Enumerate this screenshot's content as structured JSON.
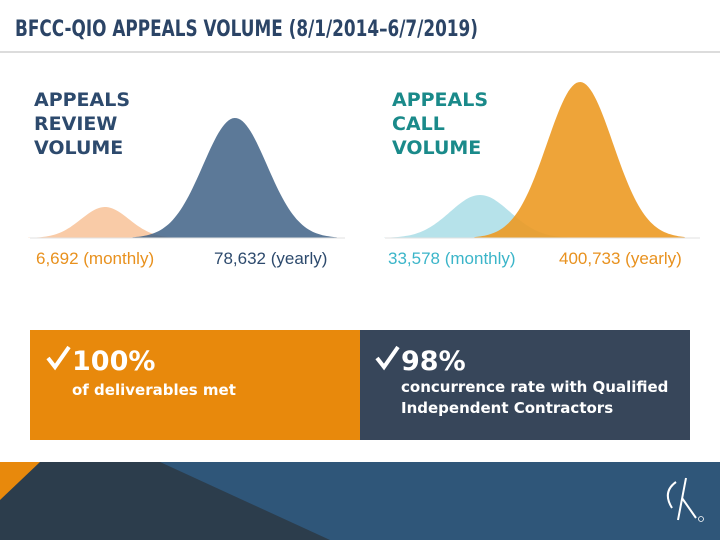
{
  "header": {
    "title": "BFCC-QIO APPEALS VOLUME (8/1/2014–6/7/2019)"
  },
  "panels": [
    {
      "heading": [
        "APPEALS",
        "REVIEW",
        "VOLUME"
      ],
      "monthly": "6,692 (monthly)",
      "yearly": "78,632 (yearly)"
    },
    {
      "heading": [
        "APPEALS",
        "CALL",
        "VOLUME"
      ],
      "monthly": "33,578 (monthly)",
      "yearly": "400,733 (yearly)"
    }
  ],
  "stats": [
    {
      "figure": "100%",
      "text": [
        "of deliverables met"
      ]
    },
    {
      "figure": "98%",
      "text": [
        "concurrence rate with Qualified",
        "Independent Contractors"
      ]
    }
  ]
}
